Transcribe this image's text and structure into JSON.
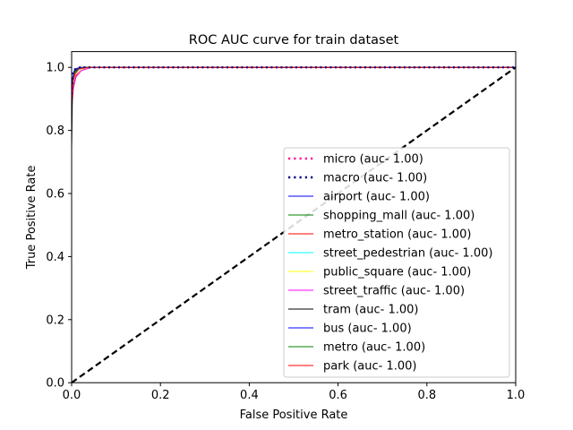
{
  "chart_data": {
    "type": "line",
    "title": "ROC AUC curve for train dataset",
    "xlabel": "False Positive Rate",
    "ylabel": "True Positive Rate",
    "xlim": [
      0,
      1
    ],
    "ylim": [
      0,
      1.05
    ],
    "xticks": [
      "0.0",
      "0.2",
      "0.4",
      "0.6",
      "0.8",
      "1.0"
    ],
    "yticks": [
      "0.0",
      "0.2",
      "0.4",
      "0.6",
      "0.8",
      "1.0"
    ],
    "grid": false,
    "legend_position": "lower-right",
    "chance_line": {
      "x": [
        0,
        1
      ],
      "y": [
        0,
        1
      ],
      "color": "#000000",
      "style": "dashed"
    },
    "series": [
      {
        "name": "micro (auc- 1.00)",
        "color": "#ff1493",
        "style": "dotted",
        "x": [
          0,
          0.002,
          0.005,
          0.01,
          0.02,
          1
        ],
        "y": [
          0.9,
          0.97,
          0.99,
          0.997,
          1.0,
          1.0
        ]
      },
      {
        "name": "macro (auc- 1.00)",
        "color": "#00008b",
        "style": "dotted",
        "x": [
          0,
          0.002,
          0.005,
          0.01,
          0.02,
          1
        ],
        "y": [
          0.9,
          0.975,
          0.99,
          0.997,
          1.0,
          1.0
        ]
      },
      {
        "name": "airport (auc- 1.00)",
        "color": "#0000ff",
        "style": "solid",
        "x": [
          0,
          0.003,
          0.006,
          0.012,
          0.03,
          1
        ],
        "y": [
          0.85,
          0.96,
          0.985,
          0.995,
          1.0,
          1.0
        ]
      },
      {
        "name": "shopping_mall (auc- 1.00)",
        "color": "#008000",
        "style": "solid",
        "x": [
          0,
          0.003,
          0.008,
          0.015,
          0.03,
          1
        ],
        "y": [
          0.88,
          0.95,
          0.985,
          0.995,
          1.0,
          1.0
        ]
      },
      {
        "name": "metro_station (auc- 1.00)",
        "color": "#ff0000",
        "style": "solid",
        "x": [
          0,
          0.004,
          0.01,
          0.02,
          0.04,
          1
        ],
        "y": [
          0.86,
          0.94,
          0.975,
          0.99,
          1.0,
          1.0
        ]
      },
      {
        "name": "street_pedestrian (auc- 1.00)",
        "color": "#00ffff",
        "style": "solid",
        "x": [
          0,
          0.003,
          0.008,
          0.018,
          0.035,
          1
        ],
        "y": [
          0.87,
          0.95,
          0.98,
          0.995,
          1.0,
          1.0
        ]
      },
      {
        "name": "public_square (auc- 1.00)",
        "color": "#ffff00",
        "style": "solid",
        "x": [
          0,
          0.004,
          0.01,
          0.02,
          0.04,
          1
        ],
        "y": [
          0.86,
          0.93,
          0.97,
          0.99,
          1.0,
          1.0
        ]
      },
      {
        "name": "street_traffic (auc- 1.00)",
        "color": "#ff00ff",
        "style": "solid",
        "x": [
          0,
          0.004,
          0.01,
          0.022,
          0.045,
          1
        ],
        "y": [
          0.87,
          0.935,
          0.97,
          0.99,
          1.0,
          1.0
        ]
      },
      {
        "name": "tram (auc- 1.00)",
        "color": "#000000",
        "style": "solid",
        "x": [
          0,
          0.002,
          0.005,
          0.01,
          0.02,
          1
        ],
        "y": [
          0.74,
          0.96,
          0.985,
          0.995,
          1.0,
          1.0
        ]
      },
      {
        "name": "bus (auc- 1.00)",
        "color": "#0000ff",
        "style": "solid",
        "x": [
          0,
          0.002,
          0.006,
          0.012,
          0.025,
          1
        ],
        "y": [
          0.88,
          0.965,
          0.99,
          0.997,
          1.0,
          1.0
        ]
      },
      {
        "name": "metro (auc- 1.00)",
        "color": "#008000",
        "style": "solid",
        "x": [
          0,
          0.003,
          0.007,
          0.015,
          0.03,
          1
        ],
        "y": [
          0.9,
          0.96,
          0.985,
          0.996,
          1.0,
          1.0
        ]
      },
      {
        "name": "park (auc- 1.00)",
        "color": "#ff0000",
        "style": "solid",
        "x": [
          0,
          0.003,
          0.008,
          0.016,
          0.035,
          1
        ],
        "y": [
          0.89,
          0.955,
          0.98,
          0.995,
          1.0,
          1.0
        ]
      }
    ]
  }
}
